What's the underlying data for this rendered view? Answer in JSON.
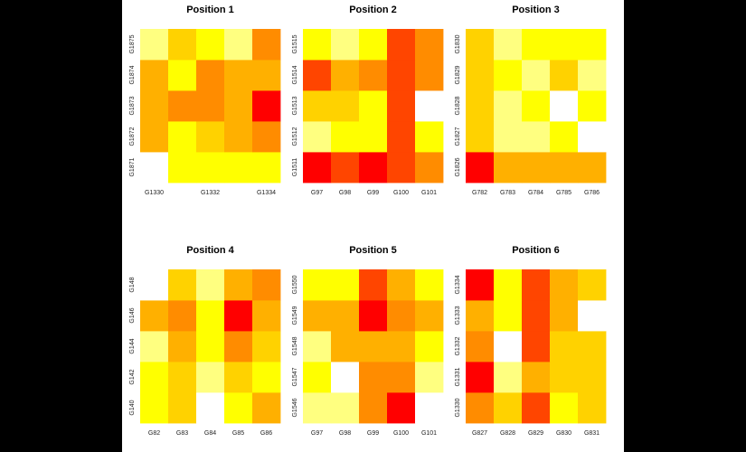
{
  "colors": {
    "background": "#000000",
    "plot_area": "#ffffff",
    "palette": [
      "#ff0000",
      "#ff4500",
      "#ff8c00",
      "#ffb000",
      "#ffd200",
      "#ffff00",
      "#ffff80",
      "#ffffff"
    ]
  },
  "chart_data": [
    {
      "type": "heatmap",
      "title": "Position 1",
      "xlabels": [
        "G1330",
        "",
        "G1332",
        "",
        "G1334"
      ],
      "ylabels": [
        "G1871",
        "G1872",
        "G1873",
        "G1874",
        "G1875"
      ],
      "values": [
        [
          7,
          5,
          5,
          5,
          5
        ],
        [
          3,
          5,
          4,
          3,
          2
        ],
        [
          3,
          2,
          2,
          3,
          0
        ],
        [
          3,
          5,
          2,
          3,
          3
        ],
        [
          6,
          4,
          5,
          6,
          2
        ]
      ]
    },
    {
      "type": "heatmap",
      "title": "Position 2",
      "xlabels": [
        "G97",
        "G98",
        "G99",
        "G100",
        "G101"
      ],
      "ylabels": [
        "G1511",
        "G1512",
        "G1513",
        "G1514",
        "G1515"
      ],
      "values": [
        [
          0,
          1,
          0,
          1,
          2
        ],
        [
          6,
          5,
          5,
          1,
          5
        ],
        [
          4,
          4,
          5,
          1,
          7
        ],
        [
          1,
          3,
          2,
          1,
          2
        ],
        [
          5,
          6,
          5,
          1,
          2
        ]
      ]
    },
    {
      "type": "heatmap",
      "title": "Position 3",
      "xlabels": [
        "G782",
        "G783",
        "G784",
        "G785",
        "G786"
      ],
      "ylabels": [
        "G1826",
        "G1827",
        "G1828",
        "G1829",
        "G1830"
      ],
      "values": [
        [
          0,
          3,
          3,
          3,
          3
        ],
        [
          4,
          6,
          6,
          5,
          7
        ],
        [
          4,
          6,
          5,
          7,
          5
        ],
        [
          4,
          5,
          6,
          4,
          6
        ],
        [
          4,
          6,
          5,
          5,
          5
        ]
      ]
    },
    {
      "type": "heatmap",
      "title": "Position 4",
      "xlabels": [
        "G82",
        "G83",
        "G84",
        "G85",
        "G86"
      ],
      "ylabels": [
        "G140",
        "G142",
        "G144",
        "G146",
        "G148"
      ],
      "values": [
        [
          5,
          4,
          7,
          5,
          3
        ],
        [
          5,
          4,
          6,
          4,
          5
        ],
        [
          6,
          3,
          5,
          2,
          4
        ],
        [
          3,
          2,
          5,
          0,
          3
        ],
        [
          7,
          4,
          6,
          3,
          2
        ]
      ]
    },
    {
      "type": "heatmap",
      "title": "Position 5",
      "xlabels": [
        "G97",
        "G98",
        "G99",
        "G100",
        "G101"
      ],
      "ylabels": [
        "G1546",
        "G1547",
        "G1548",
        "G1549",
        "G1550"
      ],
      "values": [
        [
          6,
          6,
          2,
          0,
          7
        ],
        [
          5,
          7,
          2,
          2,
          6
        ],
        [
          6,
          3,
          3,
          3,
          5
        ],
        [
          3,
          3,
          0,
          2,
          3
        ],
        [
          5,
          5,
          1,
          3,
          5
        ]
      ]
    },
    {
      "type": "heatmap",
      "title": "Position 6",
      "xlabels": [
        "G827",
        "G828",
        "G829",
        "G830",
        "G831"
      ],
      "ylabels": [
        "G1330",
        "G1331",
        "G1332",
        "G1333",
        "G1334"
      ],
      "values": [
        [
          2,
          4,
          1,
          5,
          4
        ],
        [
          0,
          6,
          3,
          4,
          4
        ],
        [
          2,
          7,
          1,
          4,
          4
        ],
        [
          3,
          5,
          1,
          3,
          7
        ],
        [
          0,
          5,
          1,
          3,
          4
        ]
      ]
    }
  ]
}
